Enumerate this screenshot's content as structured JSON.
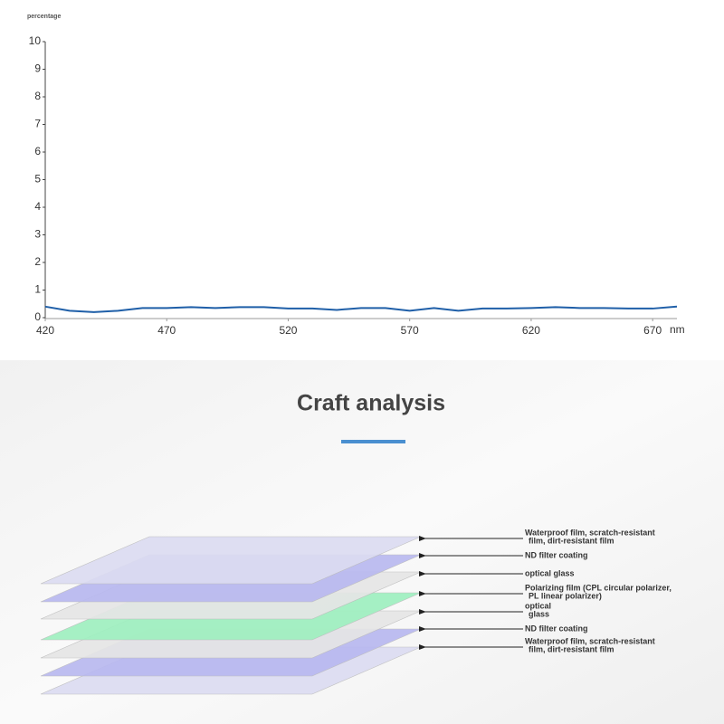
{
  "chart_data": {
    "type": "line",
    "y_label": "percentage",
    "x_label": "nm",
    "x": [
      420,
      430,
      440,
      450,
      460,
      470,
      480,
      490,
      500,
      510,
      520,
      530,
      540,
      550,
      560,
      570,
      580,
      590,
      600,
      610,
      620,
      630,
      640,
      650,
      660,
      670,
      680
    ],
    "values": [
      0.4,
      0.25,
      0.2,
      0.25,
      0.35,
      0.35,
      0.38,
      0.35,
      0.38,
      0.38,
      0.33,
      0.33,
      0.28,
      0.35,
      0.35,
      0.25,
      0.35,
      0.25,
      0.33,
      0.33,
      0.35,
      0.38,
      0.35,
      0.35,
      0.33,
      0.33,
      0.4
    ],
    "color": "#1f5fa8",
    "xlim": [
      420,
      680
    ],
    "xticks": [
      420,
      470,
      520,
      570,
      620,
      670
    ],
    "ylim": [
      0,
      10
    ],
    "yticks": [
      0,
      1,
      2,
      3,
      4,
      5,
      6,
      7,
      8,
      9,
      10
    ],
    "grid": false
  },
  "diagram": {
    "title": "Craft analysis",
    "layers": [
      {
        "lines": [
          "Waterproof film, scratch-resistant",
          "film, dirt-resistant film"
        ]
      },
      {
        "lines": [
          "ND filter coating"
        ]
      },
      {
        "lines": [
          "optical glass"
        ]
      },
      {
        "lines": [
          "Polarizing film (CPL circular polarizer,",
          "PL linear polarizer)"
        ]
      },
      {
        "lines": [
          "optical",
          "glass"
        ]
      },
      {
        "lines": [
          "ND filter coating"
        ]
      },
      {
        "lines": [
          "Waterproof film, scratch-resistant",
          "film, dirt-resistant film"
        ]
      }
    ]
  }
}
